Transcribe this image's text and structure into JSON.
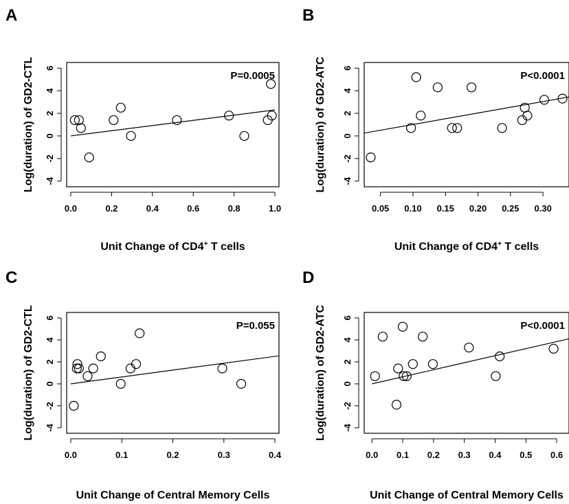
{
  "chart_data": [
    {
      "type": "scatter",
      "panel_label": "A",
      "xlabel": "Unit Change of CD4",
      "xlabel_sup": "+",
      "xlabel_suffix": " T cells",
      "ylabel": "Log(duration) of GD2-CTL",
      "annotation": "P=0.0005",
      "xlim": [
        -0.02,
        1.02
      ],
      "ylim": [
        -4.5,
        6.5
      ],
      "xticks": [
        0.0,
        0.2,
        0.4,
        0.6,
        0.8,
        1.0
      ],
      "xtick_labels": [
        "0.0",
        "0.2",
        "0.4",
        "0.6",
        "0.8",
        "1.0"
      ],
      "yticks": [
        -4,
        -2,
        0,
        2,
        4,
        6
      ],
      "ytick_labels": [
        "-4",
        "-2",
        "0",
        "2",
        "4",
        "6"
      ],
      "points": [
        {
          "x": 0.02,
          "y": 1.4
        },
        {
          "x": 0.04,
          "y": 1.4
        },
        {
          "x": 0.05,
          "y": 0.7
        },
        {
          "x": 0.09,
          "y": -1.9
        },
        {
          "x": 0.21,
          "y": 1.4
        },
        {
          "x": 0.245,
          "y": 2.5
        },
        {
          "x": 0.295,
          "y": 0.0
        },
        {
          "x": 0.52,
          "y": 1.4
        },
        {
          "x": 0.775,
          "y": 1.8
        },
        {
          "x": 0.85,
          "y": 0.0
        },
        {
          "x": 0.965,
          "y": 1.4
        },
        {
          "x": 0.98,
          "y": 4.6
        },
        {
          "x": 0.985,
          "y": 1.8
        }
      ],
      "fit_line": {
        "x": [
          0.0,
          1.0
        ],
        "y": [
          0.0,
          2.3
        ]
      }
    },
    {
      "type": "scatter",
      "panel_label": "B",
      "xlabel": "Unit Change of CD4",
      "xlabel_sup": "+",
      "xlabel_suffix": " T cells",
      "ylabel": "Log(duration) of GD2-ATC",
      "annotation": "P<0.0001",
      "xlim": [
        0.025,
        0.34
      ],
      "ylim": [
        -4.5,
        6.5
      ],
      "xticks": [
        0.05,
        0.1,
        0.15,
        0.2,
        0.25,
        0.3
      ],
      "xtick_labels": [
        "0.05",
        "0.10",
        "0.15",
        "0.20",
        "0.25",
        "0.30"
      ],
      "yticks": [
        -4,
        -2,
        0,
        2,
        4,
        6
      ],
      "ytick_labels": [
        "-4",
        "-2",
        "0",
        "2",
        "4",
        "6"
      ],
      "points": [
        {
          "x": 0.035,
          "y": -1.9
        },
        {
          "x": 0.097,
          "y": 0.7
        },
        {
          "x": 0.105,
          "y": 5.2
        },
        {
          "x": 0.112,
          "y": 1.8
        },
        {
          "x": 0.138,
          "y": 4.3
        },
        {
          "x": 0.16,
          "y": 0.7
        },
        {
          "x": 0.168,
          "y": 0.7
        },
        {
          "x": 0.19,
          "y": 4.3
        },
        {
          "x": 0.237,
          "y": 0.7
        },
        {
          "x": 0.268,
          "y": 1.4
        },
        {
          "x": 0.272,
          "y": 2.5
        },
        {
          "x": 0.276,
          "y": 1.8
        },
        {
          "x": 0.302,
          "y": 3.2
        },
        {
          "x": 0.33,
          "y": 3.3
        }
      ],
      "fit_line": {
        "x": [
          0.025,
          0.34
        ],
        "y": [
          0.25,
          3.45
        ]
      }
    },
    {
      "type": "scatter",
      "panel_label": "C",
      "xlabel": "Unit Change of Central Memory Cells",
      "ylabel": "Log(duration) of GD2-CTL",
      "annotation": "P=0.055",
      "xlim": [
        -0.008,
        0.408
      ],
      "ylim": [
        -4.5,
        6.5
      ],
      "xticks": [
        0.0,
        0.1,
        0.2,
        0.3,
        0.4
      ],
      "xtick_labels": [
        "0.0",
        "0.1",
        "0.2",
        "0.3",
        "0.4"
      ],
      "yticks": [
        -4,
        -2,
        0,
        2,
        4,
        6
      ],
      "ytick_labels": [
        "-4",
        "-2",
        "0",
        "2",
        "4",
        "6"
      ],
      "points": [
        {
          "x": 0.006,
          "y": -2.0
        },
        {
          "x": 0.012,
          "y": 1.4
        },
        {
          "x": 0.013,
          "y": 1.8
        },
        {
          "x": 0.016,
          "y": 1.4
        },
        {
          "x": 0.033,
          "y": 0.7
        },
        {
          "x": 0.044,
          "y": 1.4
        },
        {
          "x": 0.059,
          "y": 2.5
        },
        {
          "x": 0.098,
          "y": 0.0
        },
        {
          "x": 0.117,
          "y": 1.4
        },
        {
          "x": 0.128,
          "y": 1.8
        },
        {
          "x": 0.135,
          "y": 4.6
        },
        {
          "x": 0.297,
          "y": 1.4
        },
        {
          "x": 0.334,
          "y": 0.0
        }
      ],
      "fit_line": {
        "x": [
          0.0,
          0.408
        ],
        "y": [
          0.0,
          2.55
        ]
      }
    },
    {
      "type": "scatter",
      "panel_label": "D",
      "xlabel": "Unit Change of Central Memory Cells",
      "ylabel": "Log(duration) of GD2-ATC",
      "annotation": "P<0.0001",
      "xlim": [
        -0.025,
        0.64
      ],
      "ylim": [
        -4.5,
        6.5
      ],
      "xticks": [
        0.0,
        0.1,
        0.2,
        0.3,
        0.4,
        0.5,
        0.6
      ],
      "xtick_labels": [
        "0.0",
        "0.1",
        "0.2",
        "0.3",
        "0.4",
        "0.5",
        "0.6"
      ],
      "yticks": [
        -4,
        -2,
        0,
        2,
        4,
        6
      ],
      "ytick_labels": [
        "-4",
        "-2",
        "0",
        "2",
        "4",
        "6"
      ],
      "points": [
        {
          "x": 0.01,
          "y": 0.7
        },
        {
          "x": 0.035,
          "y": 4.3
        },
        {
          "x": 0.08,
          "y": -1.9
        },
        {
          "x": 0.085,
          "y": 1.4
        },
        {
          "x": 0.1,
          "y": 5.2
        },
        {
          "x": 0.103,
          "y": 0.7
        },
        {
          "x": 0.113,
          "y": 0.7
        },
        {
          "x": 0.133,
          "y": 1.8
        },
        {
          "x": 0.165,
          "y": 4.3
        },
        {
          "x": 0.198,
          "y": 1.8
        },
        {
          "x": 0.315,
          "y": 3.3
        },
        {
          "x": 0.402,
          "y": 0.7
        },
        {
          "x": 0.415,
          "y": 2.5
        },
        {
          "x": 0.59,
          "y": 3.2
        }
      ],
      "fit_line": {
        "x": [
          0.0,
          0.64
        ],
        "y": [
          0.0,
          4.1
        ]
      }
    }
  ]
}
